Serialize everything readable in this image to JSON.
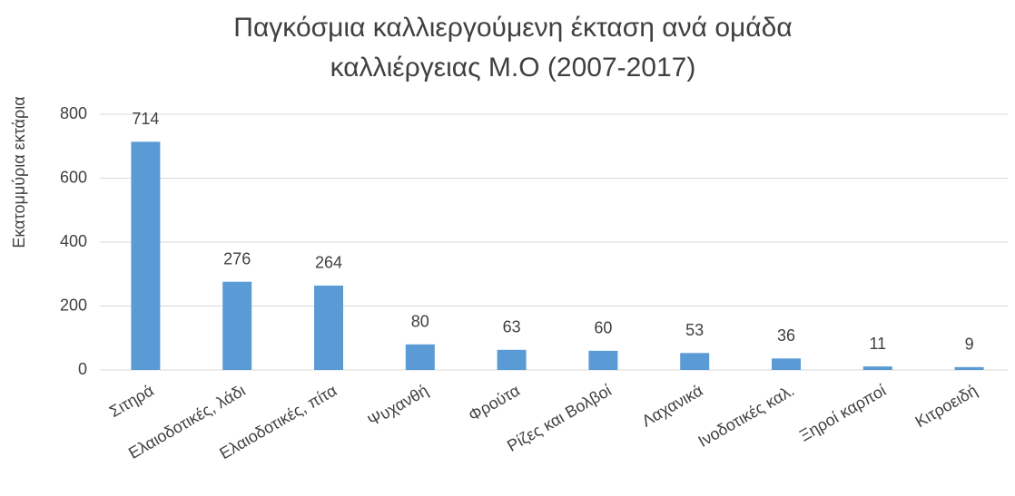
{
  "chart_data": {
    "type": "bar",
    "title": [
      "Παγκόσμια καλλιεργούμενη έκταση ανά ομάδα",
      "καλλιέργειας Μ.Ο (2007-2017)"
    ],
    "y_label": "Εκατομμύρια εκτάρια",
    "categories": [
      "Σιτηρά",
      "Ελαιοδοτικές, λάδι",
      "Ελαιοδοτικές, πίτα",
      "Ψυχανθή",
      "Φρούτα",
      "Ρίζες και Βολβοί",
      "Λαχανικά",
      "Ινοδοτικές καλ.",
      "Ξηροί καρποί",
      "Κιτροειδή"
    ],
    "values": [
      714,
      276,
      264,
      80,
      63,
      60,
      53,
      36,
      11,
      9
    ],
    "color": "#5b9bd5",
    "ylim": [
      0,
      800
    ],
    "yticks": [
      0,
      200,
      400,
      600,
      800
    ],
    "grid": true
  }
}
